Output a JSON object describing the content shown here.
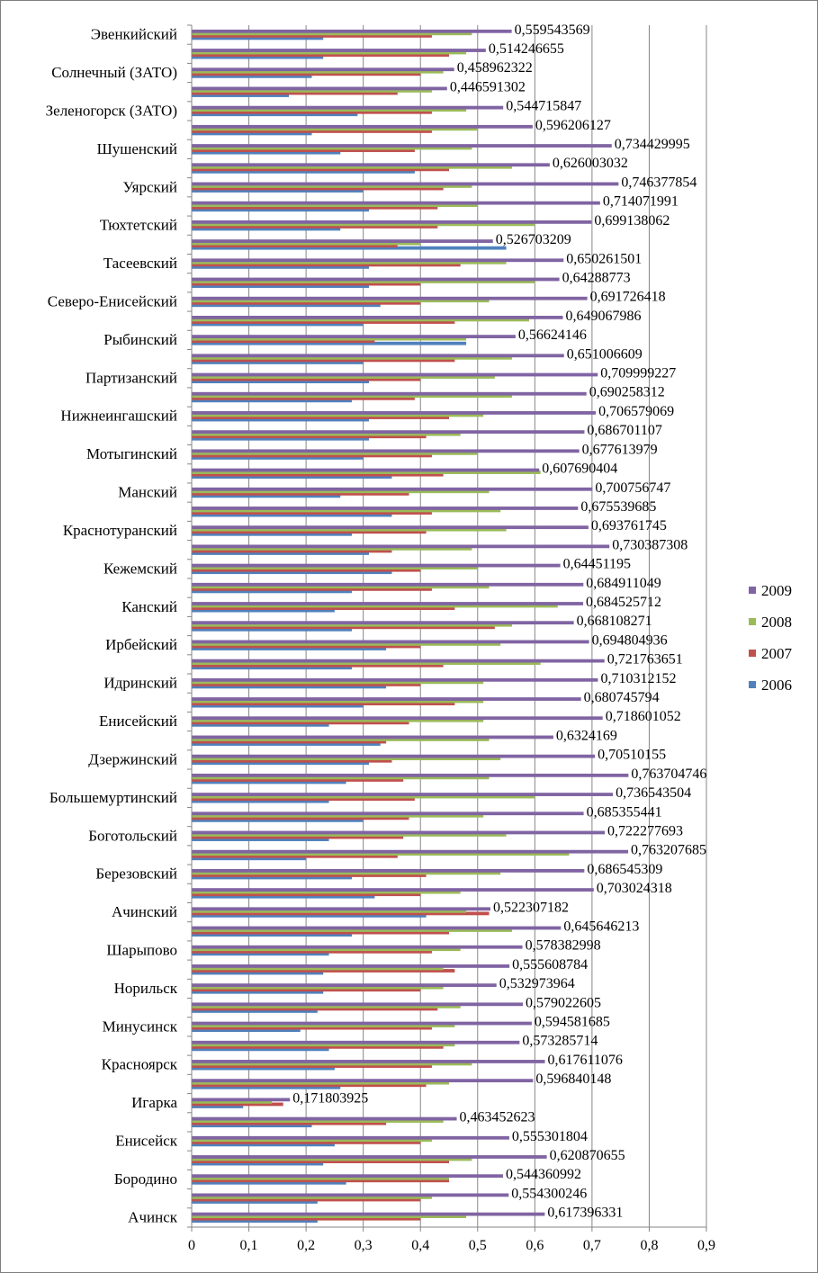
{
  "chart_data": {
    "type": "bar",
    "orientation": "horizontal",
    "title": "",
    "xlabel": "",
    "ylabel": "",
    "xlim": [
      0,
      0.9
    ],
    "ticks": [
      0,
      0.1,
      0.2,
      0.3,
      0.4,
      0.5,
      0.6,
      0.7,
      0.8,
      0.9
    ],
    "tick_labels": [
      "0",
      "0,1",
      "0,2",
      "0,3",
      "0,4",
      "0,5",
      "0,6",
      "0,7",
      "0,8",
      "0,9"
    ],
    "grid": true,
    "legend_position": "right",
    "series": [
      {
        "name": "2006",
        "color": "#4f81bd"
      },
      {
        "name": "2007",
        "color": "#c0504d"
      },
      {
        "name": "2008",
        "color": "#9bbb59"
      },
      {
        "name": "2009",
        "color": "#8064a2"
      }
    ],
    "categories": [
      {
        "label": "Эвенкийский",
        "values": [
          0.23,
          0.42,
          0.49,
          0.559543569
        ],
        "data_label": "0,559543569"
      },
      {
        "label": "",
        "values": [
          0.23,
          0.45,
          0.48,
          0.514246655
        ],
        "data_label": "0,514246655"
      },
      {
        "label": "Солнечный (ЗАТО)",
        "values": [
          0.21,
          0.4,
          0.44,
          0.458962322
        ],
        "data_label": "0,458962322"
      },
      {
        "label": "",
        "values": [
          0.17,
          0.36,
          0.42,
          0.446591302
        ],
        "data_label": "0,446591302"
      },
      {
        "label": "Зеленогорск (ЗАТО)",
        "values": [
          0.29,
          0.42,
          0.48,
          0.544715847
        ],
        "data_label": "0,544715847"
      },
      {
        "label": "",
        "values": [
          0.21,
          0.42,
          0.5,
          0.596206127
        ],
        "data_label": "0,596206127"
      },
      {
        "label": "Шушенский",
        "values": [
          0.26,
          0.39,
          0.49,
          0.734429995
        ],
        "data_label": "0,734429995"
      },
      {
        "label": "",
        "values": [
          0.39,
          0.45,
          0.56,
          0.626003032
        ],
        "data_label": "0,626003032"
      },
      {
        "label": "Уярский",
        "values": [
          0.3,
          0.44,
          0.49,
          0.746377854
        ],
        "data_label": "0,746377854"
      },
      {
        "label": "",
        "values": [
          0.31,
          0.43,
          0.5,
          0.714071991
        ],
        "data_label": "0,714071991"
      },
      {
        "label": "Тюхтетский",
        "values": [
          0.26,
          0.43,
          0.6,
          0.699138062
        ],
        "data_label": "0,699138062"
      },
      {
        "label": "",
        "values": [
          0.55,
          0.36,
          0.4,
          0.526703209
        ],
        "data_label": "0,526703209"
      },
      {
        "label": "Тасеевский",
        "values": [
          0.31,
          0.47,
          0.55,
          0.650261501
        ],
        "data_label": "0,650261501"
      },
      {
        "label": "",
        "values": [
          0.31,
          0.4,
          0.6,
          0.64288773
        ],
        "data_label": "0,64288773"
      },
      {
        "label": "Северо-Енисейский",
        "values": [
          0.33,
          0.4,
          0.52,
          0.691726418
        ],
        "data_label": "0,691726418"
      },
      {
        "label": "",
        "values": [
          0.3,
          0.46,
          0.59,
          0.649067986
        ],
        "data_label": "0,649067986"
      },
      {
        "label": "Рыбинский",
        "values": [
          0.48,
          0.32,
          0.48,
          0.56624146
        ],
        "data_label": "0,56624146"
      },
      {
        "label": "",
        "values": [
          0.3,
          0.46,
          0.56,
          0.651006609
        ],
        "data_label": "0,651006609"
      },
      {
        "label": "Партизанский",
        "values": [
          0.31,
          0.4,
          0.53,
          0.709999227
        ],
        "data_label": "0,709999227"
      },
      {
        "label": "",
        "values": [
          0.28,
          0.39,
          0.56,
          0.690258312
        ],
        "data_label": "0,690258312"
      },
      {
        "label": "Нижнеингашский",
        "values": [
          0.31,
          0.45,
          0.51,
          0.706579069
        ],
        "data_label": "0,706579069"
      },
      {
        "label": "",
        "values": [
          0.31,
          0.41,
          0.47,
          0.686701107
        ],
        "data_label": "0,686701107"
      },
      {
        "label": "Мотыгинский",
        "values": [
          0.3,
          0.42,
          0.5,
          0.677613979
        ],
        "data_label": "0,677613979"
      },
      {
        "label": "",
        "values": [
          0.35,
          0.44,
          0.61,
          0.607690404
        ],
        "data_label": "0,607690404"
      },
      {
        "label": "Манский",
        "values": [
          0.26,
          0.38,
          0.52,
          0.700756747
        ],
        "data_label": "0,700756747"
      },
      {
        "label": "",
        "values": [
          0.35,
          0.42,
          0.54,
          0.675539685
        ],
        "data_label": "0,675539685"
      },
      {
        "label": "Краснотуранский",
        "values": [
          0.28,
          0.41,
          0.55,
          0.693761745
        ],
        "data_label": "0,693761745"
      },
      {
        "label": "",
        "values": [
          0.31,
          0.35,
          0.49,
          0.730387308
        ],
        "data_label": "0,730387308"
      },
      {
        "label": "Кежемский",
        "values": [
          0.35,
          0.4,
          0.5,
          0.64451195
        ],
        "data_label": "0,64451195"
      },
      {
        "label": "",
        "values": [
          0.28,
          0.42,
          0.52,
          0.684911049
        ],
        "data_label": "0,684911049"
      },
      {
        "label": "Канский",
        "values": [
          0.25,
          0.46,
          0.64,
          0.684525712
        ],
        "data_label": "0,684525712"
      },
      {
        "label": "",
        "values": [
          0.28,
          0.53,
          0.56,
          0.668108271
        ],
        "data_label": "0,668108271"
      },
      {
        "label": "Ирбейский",
        "values": [
          0.34,
          0.4,
          0.54,
          0.694804936
        ],
        "data_label": "0,694804936"
      },
      {
        "label": "",
        "values": [
          0.28,
          0.44,
          0.61,
          0.721763651
        ],
        "data_label": "0,721763651"
      },
      {
        "label": "Идринский",
        "values": [
          0.34,
          0.4,
          0.51,
          0.710312152
        ],
        "data_label": "0,710312152"
      },
      {
        "label": "",
        "values": [
          0.3,
          0.46,
          0.51,
          0.680745794
        ],
        "data_label": "0,680745794"
      },
      {
        "label": "Енисейский",
        "values": [
          0.24,
          0.38,
          0.51,
          0.718601052
        ],
        "data_label": "0,718601052"
      },
      {
        "label": "",
        "values": [
          0.33,
          0.34,
          0.52,
          0.6324169
        ],
        "data_label": "0,6324169"
      },
      {
        "label": "Дзержинский",
        "values": [
          0.31,
          0.35,
          0.54,
          0.70510155
        ],
        "data_label": "0,70510155"
      },
      {
        "label": "",
        "values": [
          0.27,
          0.37,
          0.52,
          0.763704746
        ],
        "data_label": "0,763704746"
      },
      {
        "label": "Большемуртинский",
        "values": [
          0.24,
          0.39,
          0.6,
          0.736543504
        ],
        "data_label": "0,736543504"
      },
      {
        "label": "",
        "values": [
          0.3,
          0.38,
          0.51,
          0.685355441
        ],
        "data_label": "0,685355441"
      },
      {
        "label": "Боготольский",
        "values": [
          0.24,
          0.37,
          0.55,
          0.722277693
        ],
        "data_label": "0,722277693"
      },
      {
        "label": "",
        "values": [
          0.2,
          0.36,
          0.66,
          0.763207685
        ],
        "data_label": "0,763207685"
      },
      {
        "label": "Березовский",
        "values": [
          0.28,
          0.41,
          0.54,
          0.686545309
        ],
        "data_label": "0,686545309"
      },
      {
        "label": "",
        "values": [
          0.32,
          0.4,
          0.47,
          0.703024318
        ],
        "data_label": "0,703024318"
      },
      {
        "label": "Ачинский",
        "values": [
          0.41,
          0.52,
          0.48,
          0.522307182
        ],
        "data_label": "0,522307182"
      },
      {
        "label": "",
        "values": [
          0.28,
          0.45,
          0.56,
          0.645646213
        ],
        "data_label": "0,645646213"
      },
      {
        "label": "Шарыпово",
        "values": [
          0.24,
          0.42,
          0.47,
          0.578382998
        ],
        "data_label": "0,578382998"
      },
      {
        "label": "",
        "values": [
          0.23,
          0.46,
          0.44,
          0.555608784
        ],
        "data_label": "0,555608784"
      },
      {
        "label": "Норильск",
        "values": [
          0.23,
          0.4,
          0.44,
          0.532973964
        ],
        "data_label": "0,532973964"
      },
      {
        "label": "",
        "values": [
          0.22,
          0.43,
          0.47,
          0.579022605
        ],
        "data_label": "0,579022605"
      },
      {
        "label": "Минусинск",
        "values": [
          0.19,
          0.42,
          0.46,
          0.594581685
        ],
        "data_label": "0,594581685"
      },
      {
        "label": "",
        "values": [
          0.24,
          0.44,
          0.46,
          0.573285714
        ],
        "data_label": "0,573285714"
      },
      {
        "label": "Красноярск",
        "values": [
          0.25,
          0.42,
          0.49,
          0.617611076
        ],
        "data_label": "0,617611076"
      },
      {
        "label": "",
        "values": [
          0.26,
          0.41,
          0.45,
          0.596840148
        ],
        "data_label": "0,596840148"
      },
      {
        "label": "Игарка",
        "values": [
          0.09,
          0.16,
          0.14,
          0.171803925
        ],
        "data_label": "0,171803925"
      },
      {
        "label": "",
        "values": [
          0.21,
          0.34,
          0.44,
          0.463452623
        ],
        "data_label": "0,463452623"
      },
      {
        "label": "Енисейск",
        "values": [
          0.25,
          0.4,
          0.42,
          0.555301804
        ],
        "data_label": "0,555301804"
      },
      {
        "label": "",
        "values": [
          0.23,
          0.45,
          0.49,
          0.620870655
        ],
        "data_label": "0,620870655"
      },
      {
        "label": "Бородино",
        "values": [
          0.27,
          0.45,
          0.45,
          0.544360992
        ],
        "data_label": "0,544360992"
      },
      {
        "label": "",
        "values": [
          0.22,
          0.4,
          0.42,
          0.554300246
        ],
        "data_label": "0,554300246"
      },
      {
        "label": "Ачинск",
        "values": [
          0.22,
          0.4,
          0.48,
          0.617396331
        ],
        "data_label": "0,617396331"
      }
    ]
  }
}
